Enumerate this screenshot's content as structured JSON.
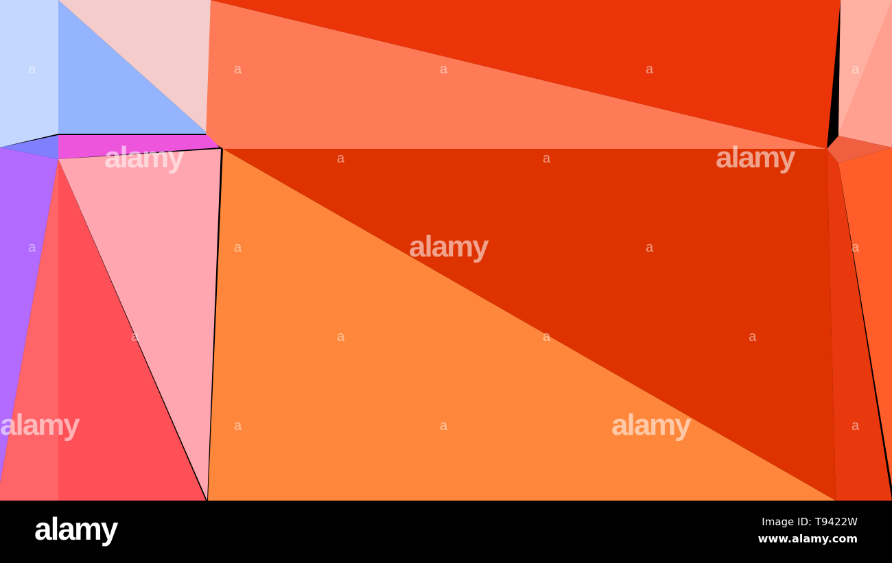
{
  "image": {
    "palette": [
      "#c4d8ff",
      "#94b4ff",
      "#f4cccc",
      "#eb3509",
      "#ff7b57",
      "#ffa090",
      "#ee55dd",
      "#b26aff",
      "#ff6468",
      "#ff5058",
      "#ffa6b0",
      "#ff873c",
      "#de3200",
      "#e8380d",
      "#ff5e2a"
    ],
    "watermark": "alamy",
    "watermark_glyph": "a"
  },
  "footer": {
    "logo": "alamy",
    "image_id": "Image ID: T9422W",
    "site": "www.alamy.com"
  }
}
